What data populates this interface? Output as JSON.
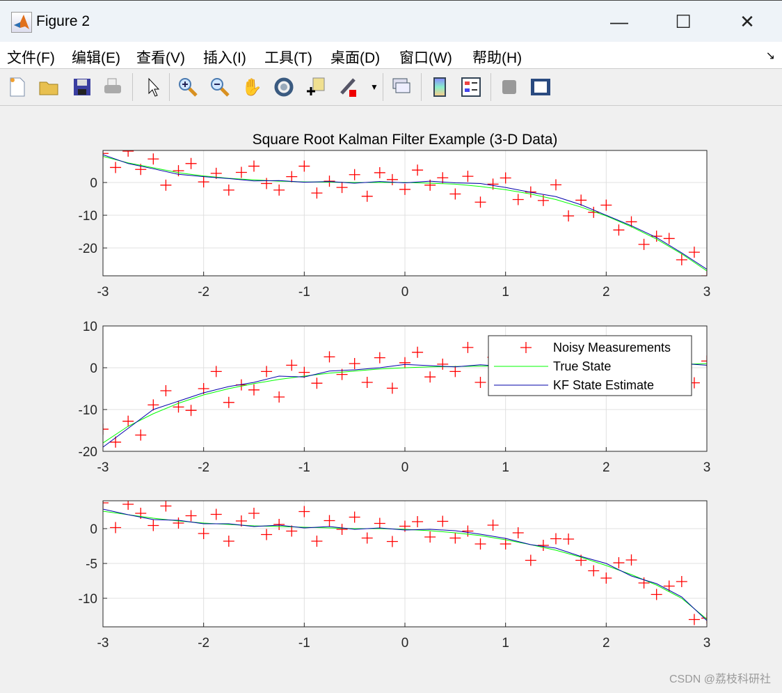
{
  "window": {
    "title": "Figure 2",
    "minimize": "—",
    "maximize": "☐",
    "close": "✕"
  },
  "menu": [
    "文件(F)",
    "编辑(E)",
    "查看(V)",
    "插入(I)",
    "工具(T)",
    "桌面(D)",
    "窗口(W)",
    "帮助(H)"
  ],
  "toolbar": [
    "new-figure",
    "open-file",
    "save",
    "print",
    "edit-plot-arrow",
    "zoom-in",
    "zoom-out",
    "pan-hand",
    "rotate-3d",
    "data-cursor",
    "brush",
    "brush-dropdown",
    "link-plot",
    "insert-colorbar",
    "insert-legend",
    "hide-plot-tools",
    "show-plot-tools"
  ],
  "watermark": "CSDN @荔枝科研社",
  "colors": {
    "measurement": "#ff0000",
    "true_state": "#00ff00",
    "estimate": "#0000aa",
    "grid": "#e0e0e0",
    "background": "#f0f0f0"
  },
  "chart_data": [
    {
      "type": "line",
      "title": "Square Root Kalman Filter Example (3-D Data)",
      "xlim": [
        -3,
        3
      ],
      "ylim": [
        -28.5,
        9.8
      ],
      "grid": true,
      "xticks": [
        "-3",
        "-2",
        "-1",
        "0",
        "1",
        "2",
        "3"
      ],
      "yticks": [
        0,
        -10,
        -20
      ],
      "ytick_labels": [
        "0",
        "-10",
        "-20"
      ],
      "x_true": [
        -3,
        -2.75,
        -2.5,
        -2.25,
        -2,
        -1.75,
        -1.5,
        -1.25,
        -1,
        -0.75,
        -0.5,
        -0.25,
        0,
        0.25,
        0.5,
        0.75,
        1,
        1.25,
        1.5,
        1.75,
        2,
        2.25,
        2.5,
        2.75,
        3
      ],
      "true_state": [
        8,
        6,
        4.5,
        3,
        2,
        1.3,
        0.8,
        0.4,
        0.2,
        0.1,
        0,
        0,
        0,
        -0.2,
        -0.5,
        -1.2,
        -2.2,
        -3.5,
        -5.2,
        -7.5,
        -10.2,
        -13.5,
        -17.3,
        -21.8,
        -27
      ],
      "estimate": [
        8.5,
        5.8,
        4.2,
        2.5,
        1.8,
        1.2,
        0.5,
        0.6,
        0.1,
        0.3,
        -0.2,
        0.3,
        -0.1,
        0.4,
        -0.1,
        -0.3,
        -1.5,
        -3.0,
        -4.3,
        -6.8,
        -10.0,
        -13.2,
        -16.8,
        -21.5,
        -26.5
      ],
      "measurements": [
        8.9,
        4.6,
        9.6,
        4.0,
        7.2,
        -0.8,
        3.6,
        5.8,
        0.2,
        2.8,
        -2.3,
        3.1,
        5.0,
        -0.3,
        -2.3,
        1.8,
        5.0,
        -3.2,
        0.4,
        -1.5,
        2.4,
        -4.2,
        3.0,
        0.9,
        -2.1,
        3.8,
        -0.8,
        1.45,
        -3.5,
        1.9,
        -6.0,
        -0.5,
        1.4,
        -5.2,
        -2.9,
        -5.5,
        -0.7,
        -10.2,
        -5.4,
        -9.1,
        -6.9,
        -14.5,
        -12.0,
        -18.9,
        -16.4,
        -17.1,
        -23.6,
        -21.3,
        -28.5
      ]
    },
    {
      "type": "line",
      "title": "",
      "xlim": [
        -3,
        3
      ],
      "ylim": [
        -20,
        10
      ],
      "grid": true,
      "xticks": [
        "-3",
        "-2",
        "-1",
        "0",
        "1",
        "2",
        "3"
      ],
      "yticks": [
        10,
        0,
        -10,
        -20
      ],
      "ytick_labels": [
        "10",
        "0",
        "-10",
        "-20"
      ],
      "legend": {
        "placement": "top-right",
        "entries": [
          "Noisy Measurements",
          "True State",
          "KF State Estimate"
        ]
      },
      "x_true": [
        -3,
        -2.75,
        -2.5,
        -2.25,
        -2,
        -1.75,
        -1.5,
        -1.25,
        -1,
        -0.75,
        -0.5,
        -0.25,
        0,
        0.25,
        0.5,
        0.75,
        1,
        1.25,
        1.5,
        1.75,
        2,
        2.25,
        2.5,
        2.75,
        3
      ],
      "true_state": [
        -18,
        -14,
        -11,
        -8.5,
        -6.5,
        -5,
        -3.8,
        -2.8,
        -2,
        -1.3,
        -0.8,
        -0.3,
        0,
        0.2,
        0.3,
        0.4,
        0.4,
        0.4,
        0.4,
        0.4,
        0.4,
        0.5,
        0.6,
        0.8,
        1
      ],
      "estimate": [
        -19,
        -14.5,
        -10,
        -8,
        -6,
        -4.5,
        -3.5,
        -2,
        -2.2,
        -0.8,
        -0.5,
        0,
        0.8,
        0.5,
        0.2,
        0.7,
        0.3,
        0.6,
        0.1,
        0.5,
        0.3,
        0.8,
        0.4,
        1.0,
        0.6
      ],
      "measurements": [
        -14.7,
        -17.8,
        -12.8,
        -16.1,
        -8.9,
        -5.5,
        -9.4,
        -10.2,
        -5.0,
        -0.9,
        -8.3,
        -4.1,
        -5.3,
        -0.9,
        -7.0,
        0.6,
        -1.1,
        -3.7,
        2.6,
        -1.6,
        1.0,
        -3.5,
        2.4,
        -4.9,
        1.2,
        3.7,
        -2.2,
        0.85,
        -0.9,
        4.85,
        -3.5,
        2.5,
        0.1,
        3.7,
        -2.3,
        1.9,
        -3.2,
        1.3,
        2.8,
        -1.4,
        3.4,
        -1.05,
        1.4,
        -1.85,
        4.2,
        -0.5,
        3.5,
        -3.6,
        1.6
      ]
    },
    {
      "type": "line",
      "title": "",
      "xlim": [
        -3,
        3
      ],
      "ylim": [
        -14.1,
        4
      ],
      "grid": true,
      "xticks": [
        "-3",
        "-2",
        "-1",
        "0",
        "1",
        "2",
        "3"
      ],
      "yticks": [
        0,
        -5,
        -10
      ],
      "ytick_labels": [
        "0",
        "-5",
        "-10"
      ],
      "x_true": [
        -3,
        -2.75,
        -2.5,
        -2.25,
        -2,
        -1.75,
        -1.5,
        -1.25,
        -1,
        -0.75,
        -0.5,
        -0.25,
        0,
        0.25,
        0.5,
        0.75,
        1,
        1.25,
        1.5,
        1.75,
        2,
        2.25,
        2.5,
        2.75,
        3
      ],
      "true_state": [
        2.5,
        2,
        1.5,
        1.1,
        0.8,
        0.6,
        0.4,
        0.3,
        0.2,
        0.1,
        0,
        0,
        -0.1,
        -0.3,
        -0.6,
        -1,
        -1.6,
        -2.3,
        -3.1,
        -4.1,
        -5.3,
        -6.6,
        -8.1,
        -10,
        -13
      ],
      "estimate": [
        2.8,
        2.0,
        1.3,
        1.2,
        0.7,
        0.7,
        0.3,
        0.5,
        0.1,
        0.3,
        -0.1,
        0.1,
        -0.2,
        -0.1,
        -0.3,
        -0.8,
        -1.4,
        -2.3,
        -2.8,
        -4.0,
        -5.0,
        -6.8,
        -7.9,
        -9.8,
        -13.2
      ],
      "measurements": [
        3.7,
        0.15,
        3.5,
        2.2,
        0.45,
        3.25,
        0.8,
        1.85,
        -0.7,
        2.05,
        -1.8,
        1.1,
        2.2,
        -0.85,
        0.6,
        -0.35,
        2.45,
        -1.8,
        1.15,
        -0.1,
        1.65,
        -1.35,
        0.75,
        -1.85,
        0.35,
        1.0,
        -1.2,
        1.05,
        -1.35,
        -0.35,
        -2.2,
        0.5,
        -2.2,
        -0.6,
        -4.55,
        -2.4,
        -1.45,
        -1.5,
        -4.55,
        -6.05,
        -7.1,
        -4.9,
        -4.5,
        -7.8,
        -9.45,
        -8.25,
        -7.6,
        -13.05,
        -12.85
      ]
    }
  ]
}
